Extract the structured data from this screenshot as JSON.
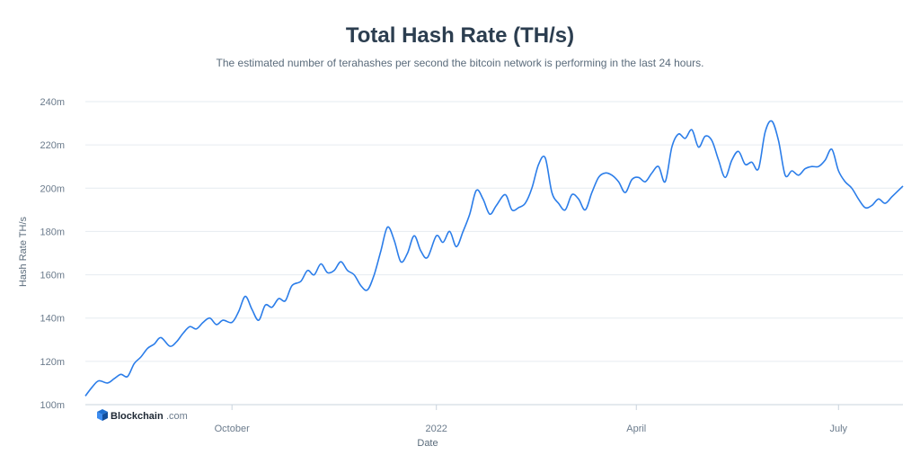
{
  "chart_data": {
    "type": "line",
    "title": "Total Hash Rate (TH/s)",
    "subtitle": "The estimated number of terahashes per second the bitcoin network is performing in the last 24 hours.",
    "xlabel": "Date",
    "ylabel": "Hash Rate TH/s",
    "ylim": [
      100,
      240
    ],
    "yticks": [
      {
        "value": 100,
        "label": "100m"
      },
      {
        "value": 120,
        "label": "120m"
      },
      {
        "value": 140,
        "label": "140m"
      },
      {
        "value": 160,
        "label": "160m"
      },
      {
        "value": 180,
        "label": "180m"
      },
      {
        "value": 200,
        "label": "200m"
      },
      {
        "value": 220,
        "label": "220m"
      },
      {
        "value": 240,
        "label": "240m"
      }
    ],
    "xlim": [
      "2021-07-27",
      "2022-07-30"
    ],
    "xticks": [
      {
        "date": "2021-10-01",
        "label": "October"
      },
      {
        "date": "2022-01-01",
        "label": "2022"
      },
      {
        "date": "2022-04-01",
        "label": "April"
      },
      {
        "date": "2022-07-01",
        "label": "July"
      }
    ],
    "grid": true,
    "line_color": "#2b7de9",
    "series": [
      {
        "x": [
          "2021-07-27",
          "2021-07-30",
          "2021-08-02",
          "2021-08-06",
          "2021-08-09",
          "2021-08-12",
          "2021-08-15",
          "2021-08-18",
          "2021-08-21",
          "2021-08-24",
          "2021-08-27",
          "2021-08-30",
          "2021-09-03",
          "2021-09-06",
          "2021-09-09",
          "2021-09-12",
          "2021-09-15",
          "2021-09-18",
          "2021-09-21",
          "2021-09-24",
          "2021-09-27",
          "2021-10-01",
          "2021-10-04",
          "2021-10-07",
          "2021-10-10",
          "2021-10-13",
          "2021-10-16",
          "2021-10-19",
          "2021-10-22",
          "2021-10-25",
          "2021-10-28",
          "2021-11-01",
          "2021-11-04",
          "2021-11-07",
          "2021-11-10",
          "2021-11-13",
          "2021-11-16",
          "2021-11-19",
          "2021-11-22",
          "2021-11-25",
          "2021-11-28",
          "2021-12-01",
          "2021-12-04",
          "2021-12-07",
          "2021-12-10",
          "2021-12-13",
          "2021-12-16",
          "2021-12-19",
          "2021-12-22",
          "2021-12-25",
          "2021-12-28",
          "2022-01-01",
          "2022-01-04",
          "2022-01-07",
          "2022-01-10",
          "2022-01-13",
          "2022-01-16",
          "2022-01-19",
          "2022-01-22",
          "2022-01-25",
          "2022-01-28",
          "2022-02-01",
          "2022-02-04",
          "2022-02-07",
          "2022-02-10",
          "2022-02-13",
          "2022-02-16",
          "2022-02-19",
          "2022-02-22",
          "2022-02-25",
          "2022-02-28",
          "2022-03-03",
          "2022-03-06",
          "2022-03-09",
          "2022-03-12",
          "2022-03-15",
          "2022-03-18",
          "2022-03-21",
          "2022-03-24",
          "2022-03-27",
          "2022-03-30",
          "2022-04-02",
          "2022-04-05",
          "2022-04-08",
          "2022-04-11",
          "2022-04-14",
          "2022-04-17",
          "2022-04-20",
          "2022-04-23",
          "2022-04-26",
          "2022-04-29",
          "2022-05-02",
          "2022-05-05",
          "2022-05-08",
          "2022-05-11",
          "2022-05-14",
          "2022-05-17",
          "2022-05-20",
          "2022-05-23",
          "2022-05-26",
          "2022-05-29",
          "2022-06-01",
          "2022-06-04",
          "2022-06-07",
          "2022-06-10",
          "2022-06-13",
          "2022-06-16",
          "2022-06-19",
          "2022-06-22",
          "2022-06-25",
          "2022-06-28",
          "2022-07-01",
          "2022-07-04",
          "2022-07-07",
          "2022-07-10",
          "2022-07-13",
          "2022-07-16",
          "2022-07-19",
          "2022-07-22",
          "2022-07-25",
          "2022-07-28",
          "2022-07-30"
        ],
        "y": [
          104,
          108,
          111,
          110,
          112,
          114,
          113,
          119,
          122,
          126,
          128,
          131,
          127,
          129,
          133,
          136,
          135,
          138,
          140,
          137,
          139,
          138,
          143,
          150,
          144,
          139,
          146,
          145,
          149,
          148,
          155,
          157,
          162,
          160,
          165,
          161,
          162,
          166,
          162,
          160,
          155,
          153,
          160,
          171,
          182,
          176,
          166,
          170,
          178,
          171,
          168,
          178,
          175,
          180,
          173,
          180,
          188,
          199,
          195,
          188,
          192,
          197,
          190,
          191,
          193,
          200,
          211,
          214,
          198,
          193,
          190,
          197,
          195,
          190,
          198,
          205,
          207,
          206,
          203,
          198,
          204,
          205,
          203,
          207,
          210,
          203,
          219,
          225,
          223,
          227,
          219,
          224,
          222,
          213,
          205,
          213,
          217,
          211,
          212,
          209,
          226,
          231,
          222,
          206,
          208,
          206,
          209,
          210,
          210,
          213,
          218,
          208,
          203,
          200,
          195,
          191,
          192,
          195,
          193,
          196,
          199,
          201
        ]
      }
    ]
  },
  "branding": {
    "name": "Blockchain",
    "suffix": ".com"
  }
}
